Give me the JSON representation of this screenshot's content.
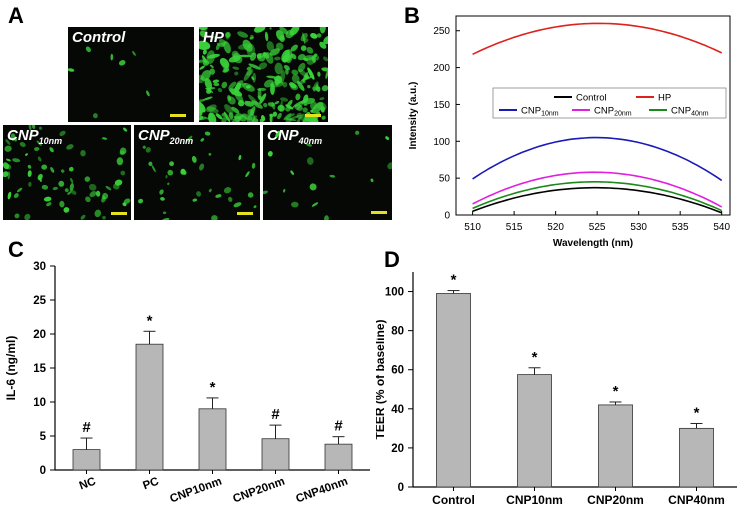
{
  "panels": {
    "a": "A",
    "b": "B",
    "c": "C",
    "d": "D"
  },
  "micrographs": [
    {
      "prefix": "Control",
      "sub": ""
    },
    {
      "prefix": "HP",
      "sub": ""
    },
    {
      "prefix": "CNP",
      "sub": "10nm"
    },
    {
      "prefix": "CNP",
      "sub": "20nm"
    },
    {
      "prefix": "CNP",
      "sub": "40nm"
    }
  ],
  "colors": {
    "green": "#3ad43a",
    "scale_bar": "#e5e21d",
    "bar_fill": "#b7b7b7"
  },
  "chart_data": [
    {
      "id": "B",
      "type": "line",
      "xlabel": "Wavelength (nm)",
      "ylabel": "Intensity (a.u.)",
      "xlim": [
        508,
        541
      ],
      "ylim": [
        0,
        270
      ],
      "xticks": [
        510,
        515,
        520,
        525,
        530,
        535,
        540
      ],
      "yticks": [
        0,
        50,
        100,
        150,
        200,
        250
      ],
      "legend": {
        "position": "center",
        "rows": [
          [
            0,
            1
          ],
          [
            2,
            3,
            4
          ]
        ]
      },
      "series": [
        {
          "name": "Control",
          "sub": "",
          "color": "#000000",
          "x": [
            510,
            525,
            540
          ],
          "y": [
            5,
            37,
            3
          ]
        },
        {
          "name": "HP",
          "sub": "",
          "color": "#e0211b",
          "x": [
            510,
            525,
            540
          ],
          "y": [
            218,
            260,
            220
          ]
        },
        {
          "name": "CNP",
          "sub": "10nm",
          "color": "#1a1ab8",
          "x": [
            510,
            525,
            540
          ],
          "y": [
            49,
            105,
            47
          ]
        },
        {
          "name": "CNP",
          "sub": "20nm",
          "color": "#e020e0",
          "x": [
            510,
            525,
            540
          ],
          "y": [
            15,
            58,
            11
          ]
        },
        {
          "name": "CNP",
          "sub": "40nm",
          "color": "#1a8a1a",
          "x": [
            510,
            525,
            540
          ],
          "y": [
            9,
            45,
            6
          ]
        }
      ]
    },
    {
      "id": "C",
      "type": "bar",
      "ylabel": "IL-6 (ng/ml)",
      "ylim": [
        0,
        30
      ],
      "yticks": [
        0,
        5,
        10,
        15,
        20,
        25,
        30
      ],
      "categories": [
        "NC",
        "PC",
        "CNP10nm",
        "CNP20nm",
        "CNP40nm"
      ],
      "values": [
        3.0,
        18.5,
        9.0,
        4.6,
        3.8
      ],
      "errors": [
        1.7,
        1.9,
        1.6,
        2.0,
        1.1
      ],
      "annotations": [
        "#",
        "*",
        "*",
        "#",
        "#"
      ]
    },
    {
      "id": "D",
      "type": "bar",
      "ylabel": "TEER (% of baseline)",
      "ylim": [
        0,
        110
      ],
      "yticks": [
        0,
        20,
        40,
        60,
        80,
        100
      ],
      "categories": [
        "Control",
        "CNP10nm",
        "CNP20nm",
        "CNP40nm"
      ],
      "values": [
        99,
        57.5,
        42,
        30
      ],
      "errors": [
        1.5,
        3.5,
        1.5,
        2.5
      ],
      "annotations": [
        "*",
        "*",
        "*",
        "*"
      ]
    }
  ]
}
